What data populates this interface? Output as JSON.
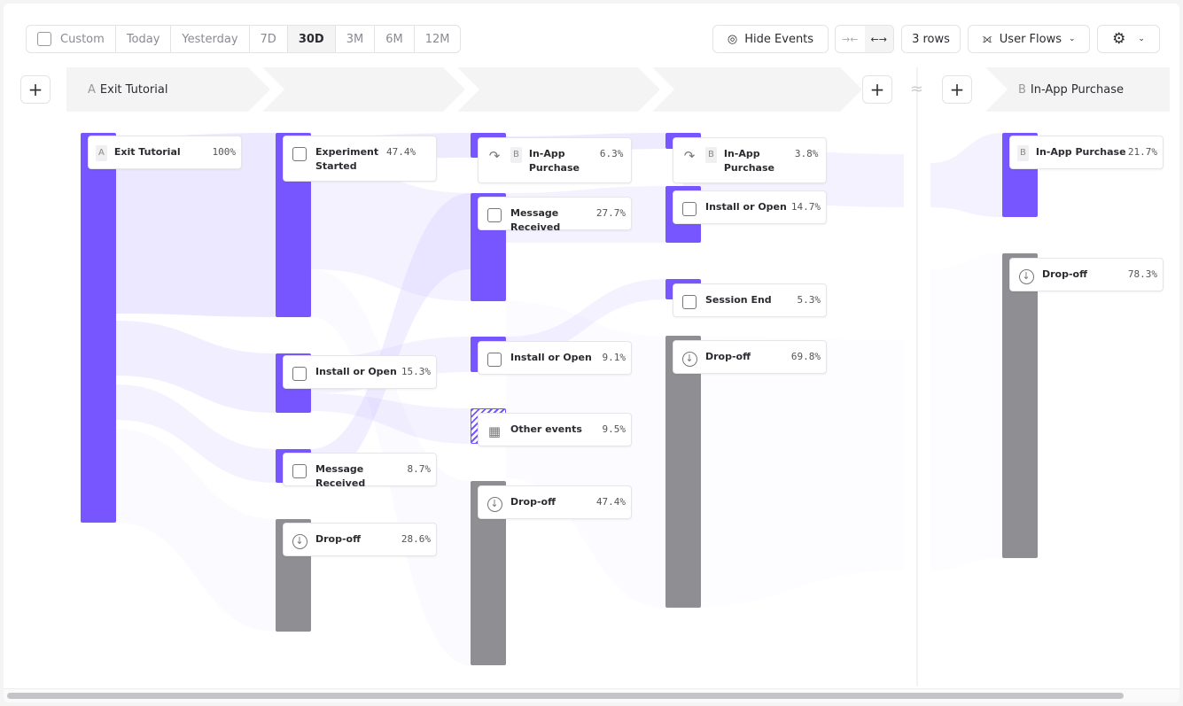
{
  "toolbar": {
    "date_ranges": [
      "Custom",
      "Today",
      "Yesterday",
      "7D",
      "30D",
      "3M",
      "6M",
      "12M"
    ],
    "selected_range": "30D",
    "hide_events": "Hide Events",
    "rows": "3 rows",
    "view": "User Flows"
  },
  "steps": {
    "a": {
      "letter": "A",
      "label": "Exit Tutorial"
    },
    "b": {
      "letter": "B",
      "label": "In-App Purchase"
    },
    "separator": "≈"
  },
  "colors": {
    "event_bar": "#7856ff",
    "dropoff_bar": "#8f8e93",
    "flow": "#c9bcff"
  },
  "columns": [
    {
      "nodes": [
        {
          "badge": "A",
          "name": "Exit Tutorial",
          "pct": "100%"
        }
      ]
    },
    {
      "nodes": [
        {
          "icon": "cursor-icon",
          "name": "Experiment Started",
          "pct": "47.4%"
        },
        {
          "icon": "copy-icon",
          "name": "Install or Open",
          "pct": "15.3%"
        },
        {
          "icon": "cursor-icon",
          "name": "Message Received",
          "pct": "8.7%"
        },
        {
          "icon": "arrow-down-icon",
          "name": "Drop-off",
          "pct": "28.6%"
        }
      ]
    },
    {
      "nodes": [
        {
          "icon": "redirect-icon",
          "badge": "B",
          "name": "In-App Purchase",
          "pct": "6.3%"
        },
        {
          "icon": "cursor-icon",
          "name": "Message Received",
          "pct": "27.7%"
        },
        {
          "icon": "copy-icon",
          "name": "Install or Open",
          "pct": "9.1%"
        },
        {
          "icon": "grid-icon",
          "name": "Other events",
          "pct": "9.5%"
        },
        {
          "icon": "arrow-down-icon",
          "name": "Drop-off",
          "pct": "47.4%"
        }
      ]
    },
    {
      "nodes": [
        {
          "icon": "redirect-icon",
          "badge": "B",
          "name": "In-App Purchase",
          "pct": "3.8%"
        },
        {
          "icon": "copy-icon",
          "name": "Install or Open",
          "pct": "14.7%"
        },
        {
          "icon": "cursor-icon",
          "name": "Session End",
          "pct": "5.3%"
        },
        {
          "icon": "arrow-down-icon",
          "name": "Drop-off",
          "pct": "69.8%"
        }
      ]
    },
    {
      "nodes": [
        {
          "badge": "B",
          "name": "In-App Purchase",
          "pct": "21.7%"
        },
        {
          "icon": "arrow-down-icon",
          "name": "Drop-off",
          "pct": "78.3%"
        }
      ]
    }
  ]
}
